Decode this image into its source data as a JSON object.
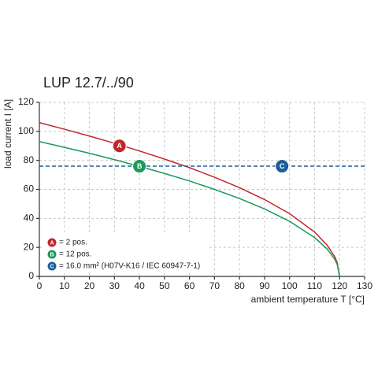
{
  "chart_data": {
    "type": "line",
    "title": "LUP 12.7/../90",
    "y_label": "load current I [A]",
    "x_label": "ambient temperature T [°C]",
    "xlim": [
      0,
      130
    ],
    "xticks": [
      0,
      10,
      20,
      30,
      40,
      50,
      60,
      70,
      80,
      90,
      100,
      110,
      120,
      130
    ],
    "ylim": [
      0,
      120
    ],
    "yticks": [
      0,
      20,
      40,
      60,
      80,
      100,
      120
    ],
    "grid": true,
    "series": [
      {
        "name": "A",
        "label": "= 2 pos.",
        "color": "#c0272d",
        "dashed": false,
        "x": [
          0,
          10,
          20,
          30,
          40,
          50,
          60,
          70,
          80,
          90,
          100,
          110,
          115,
          118,
          119,
          120
        ],
        "values": [
          106,
          101.5,
          96.8,
          91.8,
          86.5,
          80.9,
          75.0,
          68.4,
          61.2,
          53.0,
          43.3,
          30.6,
          21.6,
          13.7,
          9.7,
          0
        ],
        "marker": {
          "x": 32,
          "y": 90
        }
      },
      {
        "name": "B",
        "label": "= 12 pos.",
        "color": "#1a9a5a",
        "dashed": false,
        "x": [
          0,
          10,
          20,
          30,
          40,
          50,
          60,
          70,
          80,
          90,
          100,
          110,
          115,
          118,
          119,
          120
        ],
        "values": [
          93,
          89.0,
          84.9,
          80.5,
          75.9,
          71.0,
          65.8,
          60.0,
          53.7,
          46.5,
          38.0,
          26.8,
          19.0,
          12.0,
          8.5,
          0
        ],
        "marker": {
          "x": 40,
          "y": 76
        }
      },
      {
        "name": "C",
        "label": "= 16.0 mm² (H07V-K16 / IEC 60947-7-1)",
        "color": "#1b5e9c",
        "dashed": true,
        "x": [
          0,
          130
        ],
        "values": [
          76,
          76
        ],
        "marker": {
          "x": 97,
          "y": 76
        }
      }
    ]
  }
}
